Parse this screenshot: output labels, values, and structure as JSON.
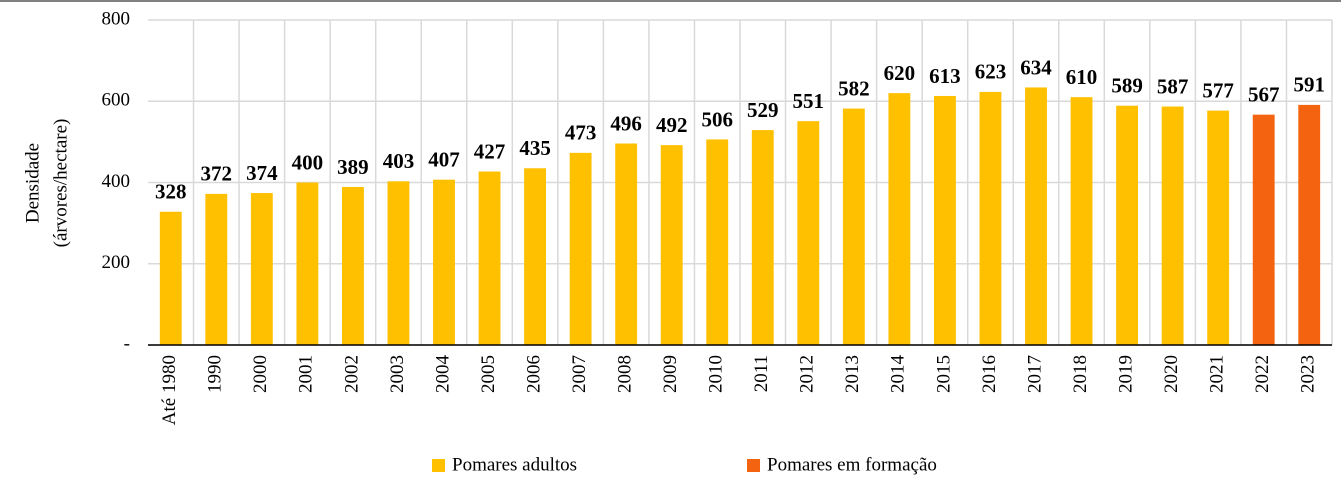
{
  "chart_data": {
    "type": "bar",
    "ylabel": [
      "Densidade",
      "(árvores/hectare)"
    ],
    "categories": [
      "Até 1980",
      "1990",
      "2000",
      "2001",
      "2002",
      "2003",
      "2004",
      "2005",
      "2006",
      "2007",
      "2008",
      "2009",
      "2010",
      "2011",
      "2012",
      "2013",
      "2014",
      "2015",
      "2016",
      "2017",
      "2018",
      "2019",
      "2020",
      "2021",
      "2022",
      "2023"
    ],
    "series": [
      {
        "name": "Pomares adultos",
        "color": "#ffc000",
        "values": [
          328,
          372,
          374,
          400,
          389,
          403,
          407,
          427,
          435,
          473,
          496,
          492,
          506,
          529,
          551,
          582,
          620,
          613,
          623,
          634,
          610,
          589,
          587,
          577,
          null,
          null
        ]
      },
      {
        "name": "Pomares em formação",
        "color": "#f4630f",
        "values": [
          null,
          null,
          null,
          null,
          null,
          null,
          null,
          null,
          null,
          null,
          null,
          null,
          null,
          null,
          null,
          null,
          null,
          null,
          null,
          null,
          null,
          null,
          null,
          null,
          567,
          591
        ]
      }
    ],
    "ylim": [
      0,
      800
    ],
    "yticks": [
      {
        "value": 0,
        "label": "-"
      },
      200,
      400,
      600,
      800
    ],
    "grid": true,
    "legend": "bottom"
  }
}
